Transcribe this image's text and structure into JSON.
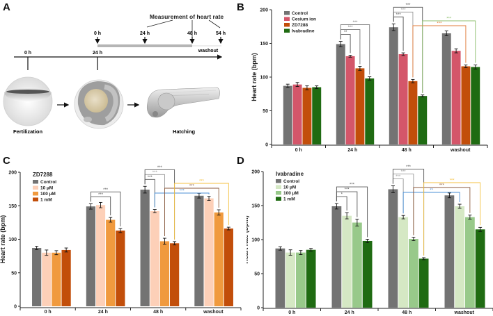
{
  "panels": {
    "A": {
      "letter": "A",
      "measurement_label": "Measurement of heart rate",
      "top_ticks": [
        "0 h",
        "24 h",
        "48 h",
        "54 h"
      ],
      "washout_label": "washout",
      "main_ticks": [
        "0 h",
        "24 h"
      ],
      "stages": [
        "Fertilization",
        "Hatching"
      ]
    },
    "B": {
      "letter": "B"
    },
    "C": {
      "letter": "C"
    },
    "D": {
      "letter": "D"
    }
  },
  "chart_data": [
    {
      "id": "B",
      "type": "bar",
      "legend_title": "",
      "categories": [
        "0 h",
        "24 h",
        "48 h",
        "washout"
      ],
      "ylabel": "Heart rate (bpm)",
      "xlabel": "",
      "ylim": [
        0,
        200
      ],
      "yticks": [
        0,
        50,
        100,
        150,
        200
      ],
      "legend": "top-left",
      "series": [
        {
          "name": "Control",
          "color": "#737373",
          "values": [
            87,
            89,
            84,
            85
          ],
          "errors": [
            2.5,
            3,
            3,
            2
          ]
        },
        {
          "name": "Cesium ion",
          "color": "#d4566a",
          "values": [
            89,
            131,
            134,
            139
          ],
          "errors": [
            3,
            1.5,
            2,
            3
          ]
        },
        {
          "name": "ZD7288",
          "color": "#c24e0a",
          "values": [
            84,
            113,
            94,
            116
          ],
          "errors": [
            3,
            3,
            2.5,
            2
          ]
        },
        {
          "name": "Ivabradine",
          "color": "#1f6b12",
          "values": [
            85,
            98,
            72,
            115
          ],
          "errors": [
            2,
            2.5,
            1.5,
            3
          ]
        }
      ],
      "series_values_by_category": true,
      "significance": [
        {
          "cat_from": 1,
          "s_from": 0,
          "cat_to": 1,
          "s_to": 1,
          "label": "**",
          "color": "#555555"
        },
        {
          "cat_from": 1,
          "s_from": 0,
          "cat_to": 1,
          "s_to": 2,
          "label": "***",
          "color": "#777777"
        },
        {
          "cat_from": 1,
          "s_from": 0,
          "cat_to": 1,
          "s_to": 3,
          "label": "***",
          "color": "#777777"
        },
        {
          "cat_from": 2,
          "s_from": 0,
          "cat_to": 2,
          "s_to": 1,
          "label": "***",
          "color": "#555555"
        },
        {
          "cat_from": 2,
          "s_from": 0,
          "cat_to": 2,
          "s_to": 2,
          "label": "***",
          "color": "#999999"
        },
        {
          "cat_from": 2,
          "s_from": 0,
          "cat_to": 2,
          "s_to": 3,
          "label": "***",
          "color": "#555555"
        },
        {
          "cat_from": 2,
          "s_from": 2,
          "cat_to": 3,
          "s_to": 2,
          "label": "***",
          "color": "#e07b39"
        },
        {
          "cat_from": 2,
          "s_from": 3,
          "cat_to": 3,
          "s_to": 3,
          "label": "***",
          "color": "#8fbf6f"
        }
      ]
    },
    {
      "id": "C",
      "type": "bar",
      "legend_title": "ZD7288",
      "categories": [
        "0 h",
        "24 h",
        "48 h",
        "washout"
      ],
      "ylabel": "Heart rate (bpm)",
      "xlabel": "",
      "ylim": [
        0,
        200
      ],
      "yticks": [
        0,
        50,
        100,
        150,
        200
      ],
      "legend": "top-left",
      "series": [
        {
          "name": "Control",
          "color": "#737373",
          "values": [
            87,
            149,
            174,
            165
          ],
          "errors": [
            2.5,
            4,
            5,
            3.5
          ]
        },
        {
          "name": "10 µM",
          "color": "#fdd0b8",
          "values": [
            80,
            151,
            142,
            161
          ],
          "errors": [
            4,
            4,
            2.5,
            3
          ]
        },
        {
          "name": "100 µM",
          "color": "#f09a3e",
          "values": [
            80,
            129,
            97,
            140
          ],
          "errors": [
            3,
            3.5,
            4.5,
            4
          ]
        },
        {
          "name": "1 mM",
          "color": "#c24e0a",
          "values": [
            84,
            113,
            94,
            116
          ],
          "errors": [
            3,
            3,
            2.5,
            2
          ]
        }
      ],
      "significance": [
        {
          "cat_from": 1,
          "s_from": 0,
          "cat_to": 1,
          "s_to": 2,
          "label": "***",
          "color": "#555555"
        },
        {
          "cat_from": 1,
          "s_from": 0,
          "cat_to": 1,
          "s_to": 3,
          "label": "***",
          "color": "#555555"
        },
        {
          "cat_from": 2,
          "s_from": 0,
          "cat_to": 2,
          "s_to": 1,
          "label": "***",
          "color": "#555555"
        },
        {
          "cat_from": 2,
          "s_from": 0,
          "cat_to": 2,
          "s_to": 2,
          "label": "***",
          "color": "#999999"
        },
        {
          "cat_from": 2,
          "s_from": 0,
          "cat_to": 2,
          "s_to": 3,
          "label": "***",
          "color": "#555555"
        },
        {
          "cat_from": 2,
          "s_from": 1,
          "cat_to": 3,
          "s_to": 1,
          "label": "***",
          "color": "#4a8fd4"
        },
        {
          "cat_from": 2,
          "s_from": 2,
          "cat_to": 3,
          "s_to": 2,
          "label": "***",
          "color": "#8b5a3c"
        },
        {
          "cat_from": 2,
          "s_from": 3,
          "cat_to": 3,
          "s_to": 3,
          "label": "***",
          "color": "#f5c242"
        }
      ]
    },
    {
      "id": "D",
      "type": "bar",
      "legend_title": "Ivabradine",
      "categories": [
        "0 h",
        "24 h",
        "48 h",
        "washout"
      ],
      "ylabel": "Heart rate (bpm)",
      "xlabel": "",
      "ylim": [
        0,
        200
      ],
      "yticks": [
        0,
        50,
        100,
        150,
        200
      ],
      "legend": "top-left",
      "series": [
        {
          "name": "Control",
          "color": "#737373",
          "values": [
            87,
            149,
            174,
            165
          ],
          "errors": [
            2.5,
            4,
            5,
            3.5
          ]
        },
        {
          "name": "10 µM",
          "color": "#d5e8c4",
          "values": [
            81,
            135,
            133,
            149
          ],
          "errors": [
            4,
            4.5,
            2.5,
            3
          ]
        },
        {
          "name": "100 µM",
          "color": "#98c98a",
          "values": [
            81,
            125,
            101,
            133
          ],
          "errors": [
            3,
            5,
            2.5,
            3
          ]
        },
        {
          "name": "1 mM",
          "color": "#1f6b12",
          "values": [
            85,
            98,
            72,
            115
          ],
          "errors": [
            2,
            2.5,
            1.5,
            3
          ]
        }
      ],
      "significance": [
        {
          "cat_from": 1,
          "s_from": 0,
          "cat_to": 1,
          "s_to": 1,
          "label": "*",
          "color": "#555555"
        },
        {
          "cat_from": 1,
          "s_from": 0,
          "cat_to": 1,
          "s_to": 2,
          "label": "***",
          "color": "#555555"
        },
        {
          "cat_from": 1,
          "s_from": 0,
          "cat_to": 1,
          "s_to": 3,
          "label": "***",
          "color": "#555555"
        },
        {
          "cat_from": 2,
          "s_from": 0,
          "cat_to": 2,
          "s_to": 1,
          "label": "***",
          "color": "#999999"
        },
        {
          "cat_from": 2,
          "s_from": 0,
          "cat_to": 2,
          "s_to": 2,
          "label": "***",
          "color": "#999999"
        },
        {
          "cat_from": 2,
          "s_from": 0,
          "cat_to": 2,
          "s_to": 3,
          "label": "***",
          "color": "#555555"
        },
        {
          "cat_from": 2,
          "s_from": 1,
          "cat_to": 3,
          "s_to": 1,
          "label": "**",
          "color": "#4a8fd4"
        },
        {
          "cat_from": 2,
          "s_from": 2,
          "cat_to": 3,
          "s_to": 2,
          "label": "***",
          "color": "#8b5a3c"
        },
        {
          "cat_from": 2,
          "s_from": 3,
          "cat_to": 3,
          "s_to": 3,
          "label": "***",
          "color": "#f5c242"
        }
      ]
    }
  ]
}
